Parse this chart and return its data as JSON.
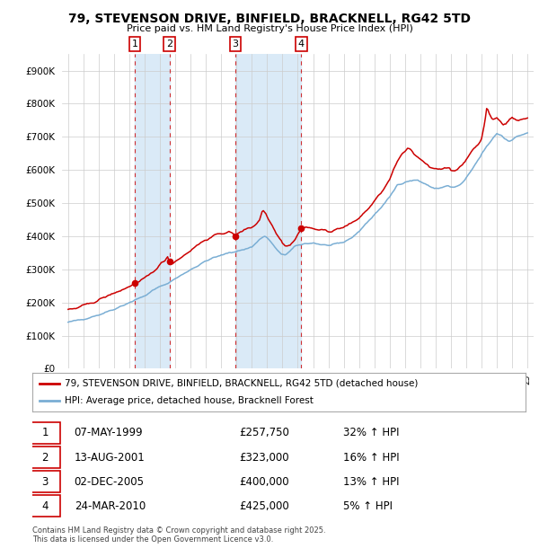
{
  "title": "79, STEVENSON DRIVE, BINFIELD, BRACKNELL, RG42 5TD",
  "subtitle": "Price paid vs. HM Land Registry's House Price Index (HPI)",
  "transactions": [
    {
      "num": 1,
      "date": "07-MAY-1999",
      "price": 257750,
      "pct": "32%",
      "dir": "↑",
      "date_x": 1999.35
    },
    {
      "num": 2,
      "date": "13-AUG-2001",
      "price": 323000,
      "pct": "16%",
      "dir": "↑",
      "date_x": 2001.62
    },
    {
      "num": 3,
      "date": "02-DEC-2005",
      "price": 400000,
      "pct": "13%",
      "dir": "↑",
      "date_x": 2005.92
    },
    {
      "num": 4,
      "date": "24-MAR-2010",
      "price": 425000,
      "pct": "5%",
      "dir": "↑",
      "date_x": 2010.23
    }
  ],
  "legend_line1": "79, STEVENSON DRIVE, BINFIELD, BRACKNELL, RG42 5TD (detached house)",
  "legend_line2": "HPI: Average price, detached house, Bracknell Forest",
  "footer": "Contains HM Land Registry data © Crown copyright and database right 2025.\nThis data is licensed under the Open Government Licence v3.0.",
  "red_color": "#cc0000",
  "blue_color": "#7aaed4",
  "shade_color": "#daeaf7",
  "grid_color": "#cccccc",
  "ylim": [
    0,
    950000
  ],
  "yticks": [
    0,
    100000,
    200000,
    300000,
    400000,
    500000,
    600000,
    700000,
    800000,
    900000
  ],
  "xlim_start": 1994.6,
  "xlim_end": 2025.4,
  "hpi_anchors": [
    [
      1995.0,
      140000
    ],
    [
      1996.0,
      150000
    ],
    [
      1997.0,
      163000
    ],
    [
      1998.0,
      180000
    ],
    [
      1999.0,
      200000
    ],
    [
      1999.5,
      210000
    ],
    [
      2000.0,
      220000
    ],
    [
      2000.5,
      235000
    ],
    [
      2001.0,
      248000
    ],
    [
      2001.5,
      258000
    ],
    [
      2002.0,
      272000
    ],
    [
      2002.5,
      285000
    ],
    [
      2003.0,
      300000
    ],
    [
      2003.5,
      312000
    ],
    [
      2004.0,
      325000
    ],
    [
      2004.5,
      335000
    ],
    [
      2005.0,
      342000
    ],
    [
      2005.5,
      350000
    ],
    [
      2006.0,
      355000
    ],
    [
      2006.5,
      360000
    ],
    [
      2007.0,
      368000
    ],
    [
      2007.5,
      390000
    ],
    [
      2007.8,
      400000
    ],
    [
      2008.0,
      395000
    ],
    [
      2008.3,
      380000
    ],
    [
      2008.6,
      360000
    ],
    [
      2008.9,
      345000
    ],
    [
      2009.2,
      345000
    ],
    [
      2009.5,
      355000
    ],
    [
      2009.8,
      368000
    ],
    [
      2010.0,
      372000
    ],
    [
      2010.5,
      378000
    ],
    [
      2011.0,
      380000
    ],
    [
      2011.5,
      375000
    ],
    [
      2012.0,
      372000
    ],
    [
      2012.5,
      375000
    ],
    [
      2013.0,
      382000
    ],
    [
      2013.5,
      395000
    ],
    [
      2014.0,
      415000
    ],
    [
      2014.5,
      440000
    ],
    [
      2015.0,
      465000
    ],
    [
      2015.5,
      490000
    ],
    [
      2016.0,
      518000
    ],
    [
      2016.3,
      540000
    ],
    [
      2016.5,
      555000
    ],
    [
      2016.8,
      560000
    ],
    [
      2017.0,
      565000
    ],
    [
      2017.5,
      568000
    ],
    [
      2017.8,
      570000
    ],
    [
      2018.0,
      565000
    ],
    [
      2018.3,
      558000
    ],
    [
      2018.6,
      550000
    ],
    [
      2018.9,
      545000
    ],
    [
      2019.2,
      545000
    ],
    [
      2019.5,
      548000
    ],
    [
      2019.8,
      552000
    ],
    [
      2020.0,
      548000
    ],
    [
      2020.3,
      548000
    ],
    [
      2020.6,
      555000
    ],
    [
      2020.9,
      568000
    ],
    [
      2021.0,
      575000
    ],
    [
      2021.3,
      595000
    ],
    [
      2021.6,
      618000
    ],
    [
      2021.9,
      638000
    ],
    [
      2022.0,
      648000
    ],
    [
      2022.3,
      668000
    ],
    [
      2022.5,
      680000
    ],
    [
      2022.8,
      700000
    ],
    [
      2023.0,
      710000
    ],
    [
      2023.3,
      705000
    ],
    [
      2023.5,
      695000
    ],
    [
      2023.8,
      688000
    ],
    [
      2024.0,
      692000
    ],
    [
      2024.3,
      700000
    ],
    [
      2024.6,
      706000
    ],
    [
      2025.0,
      712000
    ]
  ],
  "red_anchors": [
    [
      1995.0,
      178000
    ],
    [
      1995.5,
      182000
    ],
    [
      1996.0,
      190000
    ],
    [
      1996.5,
      198000
    ],
    [
      1997.0,
      208000
    ],
    [
      1997.5,
      218000
    ],
    [
      1998.0,
      228000
    ],
    [
      1998.5,
      238000
    ],
    [
      1999.0,
      248000
    ],
    [
      1999.35,
      257750
    ],
    [
      1999.6,
      260000
    ],
    [
      2000.0,
      272000
    ],
    [
      2000.5,
      290000
    ],
    [
      2001.0,
      315000
    ],
    [
      2001.3,
      325000
    ],
    [
      2001.5,
      340000
    ],
    [
      2001.62,
      323000
    ],
    [
      2001.8,
      318000
    ],
    [
      2002.0,
      325000
    ],
    [
      2002.5,
      340000
    ],
    [
      2003.0,
      358000
    ],
    [
      2003.5,
      375000
    ],
    [
      2004.0,
      390000
    ],
    [
      2004.5,
      400000
    ],
    [
      2005.0,
      408000
    ],
    [
      2005.5,
      415000
    ],
    [
      2005.92,
      400000
    ],
    [
      2006.0,
      405000
    ],
    [
      2006.3,
      415000
    ],
    [
      2006.5,
      420000
    ],
    [
      2007.0,
      428000
    ],
    [
      2007.3,
      438000
    ],
    [
      2007.5,
      450000
    ],
    [
      2007.7,
      480000
    ],
    [
      2007.9,
      470000
    ],
    [
      2008.0,
      458000
    ],
    [
      2008.3,
      435000
    ],
    [
      2008.6,
      410000
    ],
    [
      2008.9,
      390000
    ],
    [
      2009.0,
      380000
    ],
    [
      2009.2,
      372000
    ],
    [
      2009.5,
      375000
    ],
    [
      2009.8,
      388000
    ],
    [
      2010.0,
      405000
    ],
    [
      2010.23,
      425000
    ],
    [
      2010.5,
      428000
    ],
    [
      2010.8,
      425000
    ],
    [
      2011.0,
      422000
    ],
    [
      2011.3,
      420000
    ],
    [
      2011.6,
      418000
    ],
    [
      2012.0,
      415000
    ],
    [
      2012.5,
      420000
    ],
    [
      2013.0,
      428000
    ],
    [
      2013.5,
      438000
    ],
    [
      2014.0,
      455000
    ],
    [
      2014.5,
      478000
    ],
    [
      2015.0,
      505000
    ],
    [
      2015.5,
      535000
    ],
    [
      2016.0,
      570000
    ],
    [
      2016.3,
      605000
    ],
    [
      2016.5,
      625000
    ],
    [
      2016.8,
      645000
    ],
    [
      2017.0,
      655000
    ],
    [
      2017.2,
      668000
    ],
    [
      2017.4,
      660000
    ],
    [
      2017.6,
      648000
    ],
    [
      2018.0,
      635000
    ],
    [
      2018.3,
      622000
    ],
    [
      2018.6,
      612000
    ],
    [
      2018.9,
      605000
    ],
    [
      2019.0,
      602000
    ],
    [
      2019.3,
      600000
    ],
    [
      2019.6,
      605000
    ],
    [
      2019.9,
      608000
    ],
    [
      2020.0,
      600000
    ],
    [
      2020.3,
      598000
    ],
    [
      2020.6,
      610000
    ],
    [
      2020.9,
      625000
    ],
    [
      2021.0,
      635000
    ],
    [
      2021.3,
      652000
    ],
    [
      2021.6,
      668000
    ],
    [
      2021.9,
      685000
    ],
    [
      2022.0,
      695000
    ],
    [
      2022.2,
      740000
    ],
    [
      2022.35,
      790000
    ],
    [
      2022.5,
      770000
    ],
    [
      2022.7,
      752000
    ],
    [
      2022.9,
      755000
    ],
    [
      2023.0,
      758000
    ],
    [
      2023.2,
      748000
    ],
    [
      2023.4,
      738000
    ],
    [
      2023.6,
      742000
    ],
    [
      2023.8,
      752000
    ],
    [
      2024.0,
      758000
    ],
    [
      2024.2,
      752000
    ],
    [
      2024.4,
      748000
    ],
    [
      2024.6,
      752000
    ],
    [
      2024.8,
      755000
    ],
    [
      2025.0,
      758000
    ]
  ]
}
